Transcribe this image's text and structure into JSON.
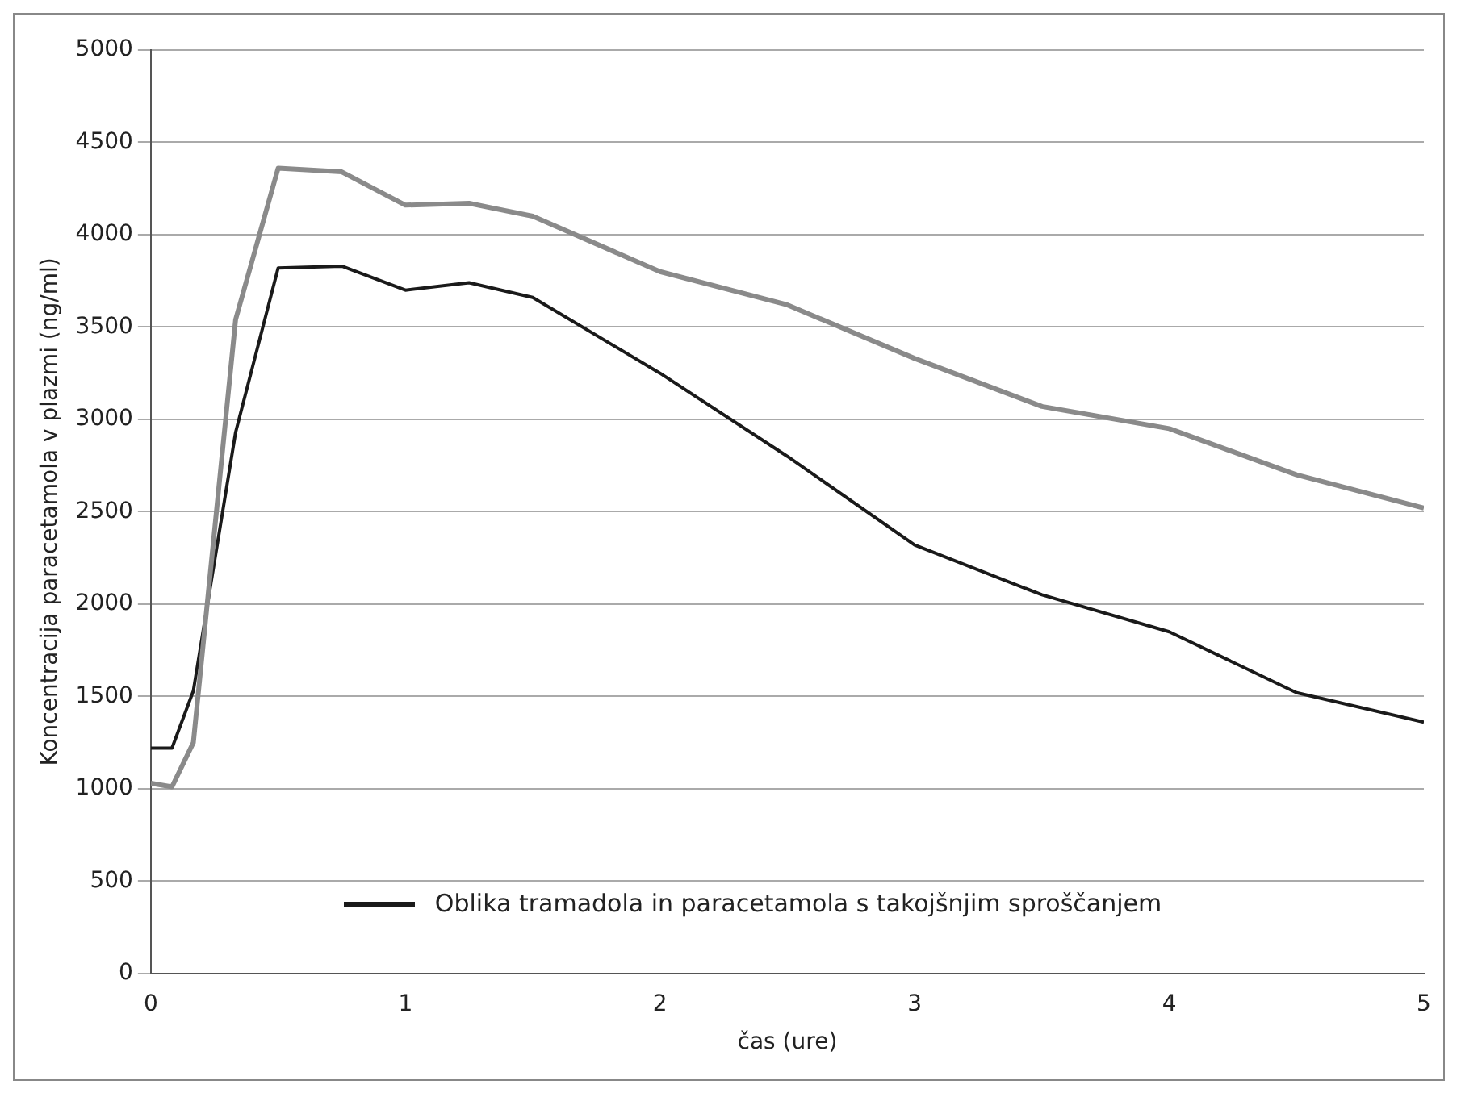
{
  "chart_data": {
    "type": "line",
    "xlabel": "čas (ure)",
    "ylabel": "Koncentracija paracetamola v plazmi (ng/ml)",
    "x": [
      0,
      0.083,
      0.167,
      0.333,
      0.5,
      0.75,
      1,
      1.25,
      1.5,
      2,
      2.5,
      3,
      3.5,
      4,
      4.5,
      5
    ],
    "series": [
      {
        "color": "#8a8a8a",
        "values": [
          1030,
          1010,
          1250,
          3540,
          4360,
          4340,
          4160,
          4170,
          4100,
          3800,
          3620,
          3330,
          3070,
          2950,
          2700,
          2520
        ]
      },
      {
        "name": "Oblika tramadola in paracetamola s takojšnjim sproščanjem",
        "color": "#1a1a1a",
        "values": [
          1220,
          1220,
          1530,
          2930,
          3820,
          3830,
          3700,
          3740,
          3660,
          3250,
          2800,
          2320,
          2050,
          1850,
          1520,
          1360
        ]
      }
    ],
    "xlim": [
      0,
      5
    ],
    "xticks": [
      0,
      1,
      2,
      3,
      4,
      5
    ],
    "ylim": [
      0,
      5000
    ],
    "yticks": [
      0,
      500,
      1000,
      1500,
      2000,
      2500,
      3000,
      3500,
      4000,
      4500,
      5000
    ],
    "grid": "y",
    "legend": "bottom left",
    "marker": "none",
    "line_style": "solid"
  }
}
